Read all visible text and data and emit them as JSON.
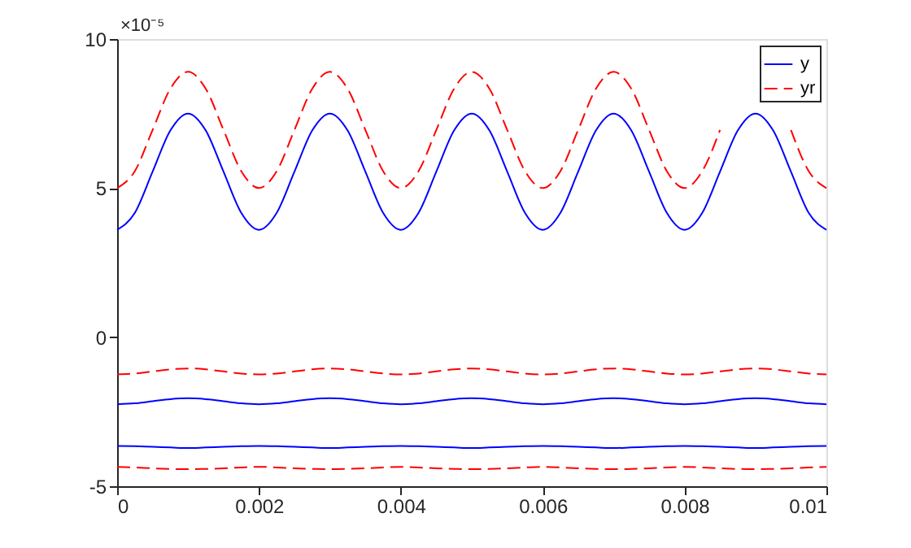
{
  "chart_data": {
    "type": "line",
    "x": [
      0,
      0.00025,
      0.0005,
      0.00075,
      0.001,
      0.00125,
      0.0015,
      0.00175,
      0.002,
      0.00225,
      0.0025,
      0.00275,
      0.003,
      0.00325,
      0.0035,
      0.00375,
      0.004,
      0.00425,
      0.0045,
      0.00475,
      0.005,
      0.00525,
      0.0055,
      0.00575,
      0.006,
      0.00625,
      0.0065,
      0.00675,
      0.007,
      0.00725,
      0.0075,
      0.00775,
      0.008,
      0.00825,
      0.0085,
      0.00875,
      0.009,
      0.00925,
      0.0095,
      0.00975,
      0.01
    ],
    "series": [
      {
        "name": "y",
        "color": "#0000ff",
        "line_style": "solid",
        "values": [
          3.6,
          4.17,
          5.55,
          6.93,
          7.5,
          6.93,
          5.55,
          4.17,
          3.6,
          4.17,
          5.55,
          6.93,
          7.5,
          6.93,
          5.55,
          4.17,
          3.6,
          4.17,
          5.55,
          6.93,
          7.5,
          6.93,
          5.55,
          4.17,
          3.6,
          4.17,
          5.55,
          6.93,
          7.5,
          6.93,
          5.55,
          4.17,
          3.6,
          4.17,
          5.55,
          6.93,
          7.5,
          6.93,
          5.55,
          4.17,
          3.6
        ]
      },
      {
        "name": "yr",
        "color": "#ff0000",
        "line_style": "dashed",
        "values": [
          5,
          5.57,
          6.95,
          8.33,
          8.9,
          8.33,
          6.95,
          5.57,
          5,
          5.57,
          6.95,
          8.33,
          8.9,
          8.33,
          6.95,
          5.57,
          5,
          5.57,
          6.95,
          8.33,
          8.9,
          8.33,
          6.95,
          5.57,
          5,
          5.57,
          6.95,
          8.33,
          8.9,
          8.33,
          6.95,
          5.57,
          5,
          5.57,
          6.95,
          null,
          null,
          null,
          6.95,
          5.57,
          5
        ]
      },
      {
        "color": "#ff0000",
        "line_style": "dashed",
        "values": [
          -1.25,
          -1.22,
          -1.15,
          -1.08,
          -1.05,
          -1.08,
          -1.15,
          -1.22,
          -1.25,
          -1.22,
          -1.15,
          -1.08,
          -1.05,
          -1.08,
          -1.15,
          -1.22,
          -1.25,
          -1.22,
          -1.15,
          -1.08,
          -1.05,
          -1.08,
          -1.15,
          -1.22,
          -1.25,
          -1.22,
          -1.15,
          -1.08,
          -1.05,
          -1.08,
          -1.15,
          -1.22,
          -1.25,
          -1.22,
          -1.15,
          -1.08,
          -1.05,
          -1.08,
          -1.15,
          -1.22,
          -1.25
        ]
      },
      {
        "color": "#0000ff",
        "line_style": "solid",
        "values": [
          -2.25,
          -2.22,
          -2.15,
          -2.08,
          -2.05,
          -2.08,
          -2.15,
          -2.22,
          -2.25,
          -2.22,
          -2.15,
          -2.08,
          -2.05,
          -2.08,
          -2.15,
          -2.22,
          -2.25,
          -2.22,
          -2.15,
          -2.08,
          -2.05,
          -2.08,
          -2.15,
          -2.22,
          -2.25,
          -2.22,
          -2.15,
          -2.08,
          -2.05,
          -2.08,
          -2.15,
          -2.22,
          -2.25,
          -2.22,
          -2.15,
          -2.08,
          -2.05,
          -2.08,
          -2.15,
          -2.22,
          -2.25
        ]
      },
      {
        "color": "#0000ff",
        "line_style": "solid",
        "values": [
          -3.65,
          -3.66,
          -3.68,
          -3.7,
          -3.72,
          -3.7,
          -3.68,
          -3.66,
          -3.65,
          -3.66,
          -3.68,
          -3.7,
          -3.72,
          -3.7,
          -3.68,
          -3.66,
          -3.65,
          -3.66,
          -3.68,
          -3.7,
          -3.72,
          -3.7,
          -3.68,
          -3.66,
          -3.65,
          -3.66,
          -3.68,
          -3.7,
          -3.72,
          -3.7,
          -3.68,
          -3.66,
          -3.65,
          -3.66,
          -3.68,
          -3.7,
          -3.72,
          -3.7,
          -3.68,
          -3.66,
          -3.65
        ]
      },
      {
        "color": "#ff0000",
        "line_style": "dashed",
        "values": [
          -4.35,
          -4.37,
          -4.4,
          -4.42,
          -4.43,
          -4.42,
          -4.4,
          -4.37,
          -4.35,
          -4.37,
          -4.4,
          -4.42,
          -4.43,
          -4.42,
          -4.4,
          -4.37,
          -4.35,
          -4.37,
          -4.4,
          -4.42,
          -4.43,
          -4.42,
          -4.4,
          -4.37,
          -4.35,
          -4.37,
          -4.4,
          -4.42,
          -4.43,
          -4.42,
          -4.4,
          -4.37,
          -4.35,
          -4.37,
          -4.4,
          -4.42,
          -4.43,
          -4.42,
          -4.4,
          -4.37,
          -4.35
        ]
      }
    ],
    "xlim": [
      0,
      0.01
    ],
    "xticks": [
      0,
      0.002,
      0.004,
      0.006,
      0.008,
      0.01
    ],
    "ylim": [
      -5,
      10
    ],
    "yticks": [
      -5,
      0,
      5,
      10
    ],
    "grid": false,
    "legend": "top right",
    "annotations": [
      "×10⁻⁵"
    ]
  }
}
